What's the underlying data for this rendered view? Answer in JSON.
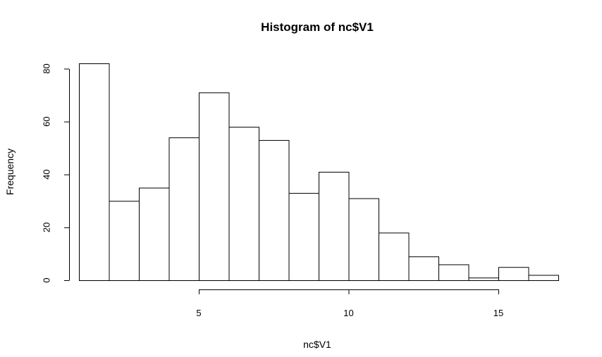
{
  "chart_data": {
    "type": "bar",
    "title": "Histogram of nc$V1",
    "xlabel": "nc$V1",
    "ylabel": "Frequency",
    "bin_edges": [
      1,
      2,
      3,
      4,
      5,
      6,
      7,
      8,
      9,
      10,
      11,
      12,
      13,
      14,
      15,
      16,
      17
    ],
    "values": [
      82,
      30,
      35,
      54,
      71,
      58,
      53,
      33,
      41,
      31,
      18,
      9,
      6,
      1,
      5,
      2
    ],
    "x_ticks": [
      "5",
      "10",
      "15"
    ],
    "x_tick_values": [
      5,
      10,
      15
    ],
    "y_ticks": [
      "0",
      "20",
      "40",
      "60",
      "80"
    ],
    "y_tick_values": [
      0,
      20,
      40,
      60,
      80
    ],
    "xlim": [
      1,
      17
    ],
    "ylim": [
      0,
      82
    ],
    "grid": false,
    "colors": {
      "bar_fill": "#ffffff",
      "bar_stroke": "#000000"
    }
  }
}
